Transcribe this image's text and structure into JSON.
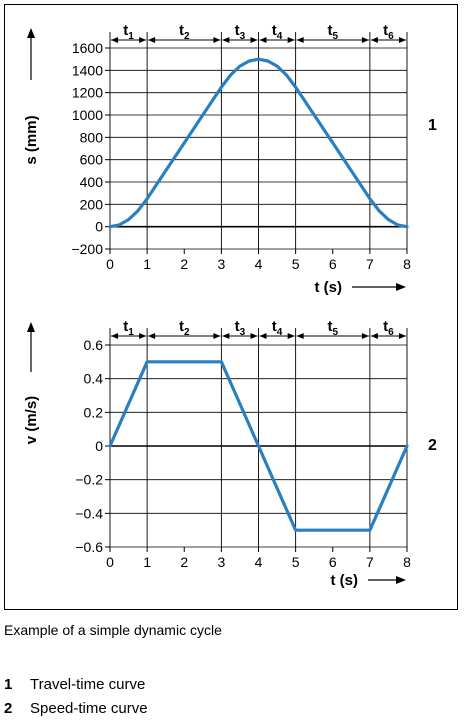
{
  "chart_data": [
    {
      "type": "line",
      "marker": "1",
      "xlabel": "t (s)",
      "ylabel": "s (mm)",
      "xlim": [
        0,
        8
      ],
      "ylim": [
        -200,
        1600
      ],
      "x_ticks": [
        "0",
        "1",
        "2",
        "3",
        "4",
        "5",
        "6",
        "7",
        "8"
      ],
      "y_ticks": [
        "-200",
        "0",
        "200",
        "400",
        "600",
        "800",
        "1000",
        "1200",
        "1400",
        "1600"
      ],
      "phases": [
        "t1",
        "t2",
        "t3",
        "t4",
        "t5",
        "t6"
      ],
      "phase_bounds": [
        0,
        1,
        3,
        4,
        5,
        7,
        8
      ],
      "grid": true,
      "color": "#2a7fc0",
      "x": [
        0,
        0.25,
        0.5,
        0.75,
        1,
        1.5,
        2,
        2.5,
        3,
        3.25,
        3.5,
        3.75,
        4,
        4.25,
        4.5,
        4.75,
        5,
        5.5,
        6,
        6.5,
        7,
        7.25,
        7.5,
        7.75,
        8
      ],
      "y": [
        0,
        16,
        63,
        141,
        250,
        500,
        750,
        1000,
        1250,
        1359,
        1438,
        1484,
        1500,
        1484,
        1438,
        1359,
        1250,
        1000,
        750,
        500,
        250,
        141,
        63,
        16,
        0
      ]
    },
    {
      "type": "line",
      "marker": "2",
      "xlabel": "t (s)",
      "ylabel": "v (m/s)",
      "xlim": [
        0,
        8
      ],
      "ylim": [
        -0.6,
        0.6
      ],
      "x_ticks": [
        "0",
        "1",
        "2",
        "3",
        "4",
        "5",
        "6",
        "7",
        "8"
      ],
      "y_ticks": [
        "-0.6",
        "-0.4",
        "-0.2",
        "0",
        "0.2",
        "0.4",
        "0.6"
      ],
      "phases": [
        "t1",
        "t2",
        "t3",
        "t4",
        "t5",
        "t6"
      ],
      "phase_bounds": [
        0,
        1,
        3,
        4,
        5,
        7,
        8
      ],
      "grid": true,
      "color": "#2a7fc0",
      "x": [
        0,
        1,
        3,
        4,
        5,
        7,
        8
      ],
      "y": [
        0,
        0.5,
        0.5,
        0,
        -0.5,
        -0.5,
        0
      ]
    }
  ],
  "caption": "Example of a simple dynamic cycle",
  "legend": [
    {
      "num": "1",
      "label": "Travel-time curve"
    },
    {
      "num": "2",
      "label": "Speed-time curve"
    }
  ]
}
